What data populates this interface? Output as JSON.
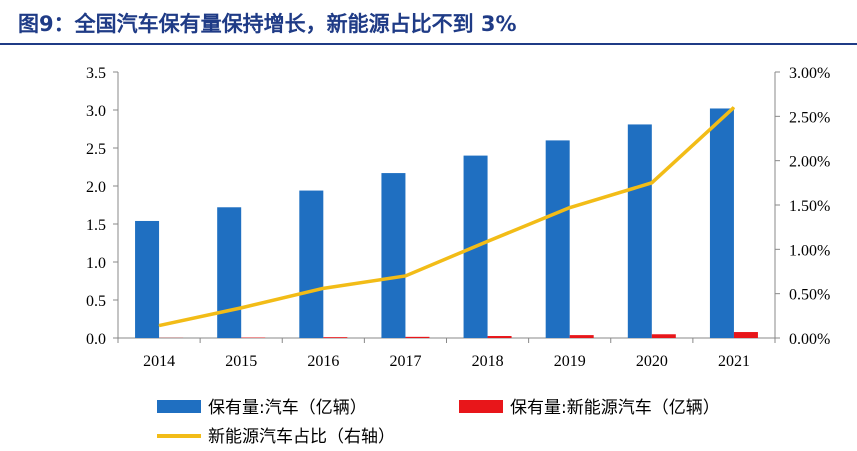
{
  "title": "图9：全国汽车保有量保持增长，新能源占比不到 3%",
  "colors": {
    "title": "#1f3b86",
    "bar_auto": "#1f6fc1",
    "bar_nev": "#e8161a",
    "line_share": "#f2bc17"
  },
  "chart_data": {
    "type": "bar+line",
    "categories": [
      "2014",
      "2015",
      "2016",
      "2017",
      "2018",
      "2019",
      "2020",
      "2021"
    ],
    "series": [
      {
        "name": "保有量:汽车（亿辆）",
        "kind": "bar",
        "axis": "left",
        "color": "#1f6fc1",
        "values": [
          1.54,
          1.72,
          1.94,
          2.17,
          2.4,
          2.6,
          2.81,
          3.02
        ]
      },
      {
        "name": "保有量:新能源汽车（亿辆）",
        "kind": "bar",
        "axis": "left",
        "color": "#e8161a",
        "values": [
          0.0022,
          0.0058,
          0.0109,
          0.0153,
          0.0261,
          0.0381,
          0.0492,
          0.0784
        ]
      },
      {
        "name": "新能源汽车占比（右轴）",
        "kind": "line",
        "axis": "right",
        "color": "#f2bc17",
        "values": [
          0.0014,
          0.0034,
          0.0056,
          0.007,
          0.0109,
          0.0147,
          0.0175,
          0.026
        ]
      }
    ],
    "left_axis": {
      "min": 0,
      "max": 3.5,
      "ticks": [
        "0.0",
        "0.5",
        "1.0",
        "1.5",
        "2.0",
        "2.5",
        "3.0",
        "3.5"
      ]
    },
    "right_axis": {
      "min": 0,
      "max": 0.03,
      "ticks": [
        "0.00%",
        "0.50%",
        "1.00%",
        "1.50%",
        "2.00%",
        "2.50%",
        "3.00%"
      ]
    },
    "legend_position": "bottom",
    "grid": false
  }
}
